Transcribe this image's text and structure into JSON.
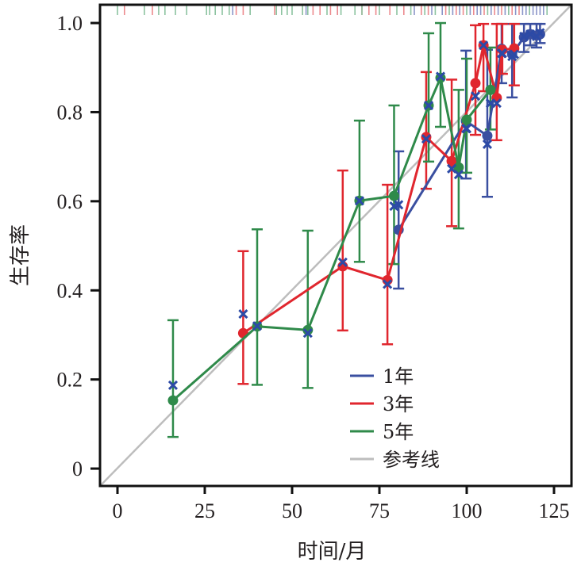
{
  "chart_data": {
    "type": "line",
    "title": "",
    "xlabel": "时间/月",
    "ylabel": "生存率",
    "xlim": [
      -5,
      130
    ],
    "ylim": [
      -0.039,
      1.041
    ],
    "xticks": [
      0,
      25,
      50,
      75,
      100,
      125
    ],
    "xtick_labels": [
      "0",
      "25",
      "50",
      "75",
      "100",
      "125"
    ],
    "yticks": [
      0,
      0.2,
      0.4,
      0.6,
      0.8,
      1.0
    ],
    "ytick_labels": [
      "0",
      "0.2",
      "0.4",
      "0.6",
      "0.8",
      "1.0"
    ],
    "grid": false,
    "legend_position": "bottom-right",
    "colors": {
      "1年": "#3a4fa0",
      "3年": "#e0262e",
      "5年": "#2f8a4a",
      "参考线": "#bdbdbd"
    },
    "reference_line": {
      "name": "参考线",
      "x": [
        -5,
        130
      ],
      "y": [
        -0.039,
        1.041
      ]
    },
    "series": [
      {
        "name": "1年",
        "key": "y1",
        "points": [
          {
            "x": 80.5,
            "y": 0.536,
            "lo": 0.404,
            "hi": 0.712,
            "obs": 0.592
          },
          {
            "x": 99.8,
            "y": 0.78,
            "lo": 0.651,
            "hi": 0.938,
            "obs": 0.763
          },
          {
            "x": 105.9,
            "y": 0.747,
            "lo": 0.61,
            "hi": 0.94,
            "obs": 0.728
          },
          {
            "x": 110.0,
            "y": 0.942,
            "lo": 0.865,
            "hi": 0.998,
            "obs": 0.932
          },
          {
            "x": 113.0,
            "y": 0.93,
            "lo": 0.833,
            "hi": 0.998,
            "obs": 0.925
          },
          {
            "x": 116.4,
            "y": 0.968,
            "lo": 0.935,
            "hi": 0.998,
            "obs": 0.97
          },
          {
            "x": 118.2,
            "y": 0.975,
            "lo": 0.95,
            "hi": 0.998,
            "obs": 0.975
          },
          {
            "x": 120.0,
            "y": 0.972,
            "lo": 0.945,
            "hi": 0.998,
            "obs": 0.97
          },
          {
            "x": 121.0,
            "y": 0.975,
            "lo": 0.955,
            "hi": 0.998,
            "obs": 0.978
          }
        ]
      },
      {
        "name": "3年",
        "key": "y3",
        "points": [
          {
            "x": 36.0,
            "y": 0.304,
            "lo": 0.19,
            "hi": 0.488,
            "obs": 0.347
          },
          {
            "x": 64.5,
            "y": 0.454,
            "lo": 0.31,
            "hi": 0.669,
            "obs": 0.463
          },
          {
            "x": 77.3,
            "y": 0.423,
            "lo": 0.279,
            "hi": 0.637,
            "obs": 0.414
          },
          {
            "x": 88.4,
            "y": 0.744,
            "lo": 0.628,
            "hi": 0.89,
            "obs": 0.74
          },
          {
            "x": 95.7,
            "y": 0.69,
            "lo": 0.544,
            "hi": 0.873,
            "obs": 0.673
          },
          {
            "x": 102.5,
            "y": 0.865,
            "lo": 0.749,
            "hi": 0.995,
            "obs": 0.836
          },
          {
            "x": 104.8,
            "y": 0.95,
            "lo": 0.847,
            "hi": 0.998,
            "obs": 0.95
          },
          {
            "x": 108.6,
            "y": 0.832,
            "lo": 0.737,
            "hi": 0.998,
            "obs": 0.82
          },
          {
            "x": 110.2,
            "y": 0.94,
            "lo": 0.886,
            "hi": 0.998,
            "obs": 0.932
          },
          {
            "x": 113.6,
            "y": 0.943,
            "lo": 0.86,
            "hi": 0.998,
            "obs": 0.93
          }
        ]
      },
      {
        "name": "5年",
        "key": "y5",
        "points": [
          {
            "x": 15.9,
            "y": 0.153,
            "lo": 0.071,
            "hi": 0.333,
            "obs": 0.187
          },
          {
            "x": 40.0,
            "y": 0.319,
            "lo": 0.188,
            "hi": 0.537,
            "obs": 0.32
          },
          {
            "x": 54.5,
            "y": 0.311,
            "lo": 0.181,
            "hi": 0.534,
            "obs": 0.304
          },
          {
            "x": 69.3,
            "y": 0.601,
            "lo": 0.464,
            "hi": 0.781,
            "obs": 0.601
          },
          {
            "x": 79.2,
            "y": 0.612,
            "lo": 0.459,
            "hi": 0.815,
            "obs": 0.589
          },
          {
            "x": 89.1,
            "y": 0.815,
            "lo": 0.689,
            "hi": 0.977,
            "obs": 0.815
          },
          {
            "x": 92.5,
            "y": 0.877,
            "lo": 0.767,
            "hi": 1.0,
            "obs": 0.88
          },
          {
            "x": 97.7,
            "y": 0.676,
            "lo": 0.539,
            "hi": 0.85,
            "obs": 0.66
          },
          {
            "x": 100.0,
            "y": 0.783,
            "lo": 0.664,
            "hi": 0.92,
            "obs": 0.763
          },
          {
            "x": 106.8,
            "y": 0.85,
            "lo": 0.761,
            "hi": 0.945,
            "obs": 0.82
          }
        ]
      }
    ],
    "rug": {
      "y1": [
        33,
        54,
        63,
        85,
        90,
        93,
        96,
        98,
        101,
        103,
        104,
        107,
        109,
        111,
        112,
        114,
        116,
        117,
        118,
        119,
        120,
        121,
        122
      ],
      "y3": [
        2,
        10,
        34,
        36,
        38,
        45,
        53,
        56,
        58,
        61,
        63,
        70,
        72,
        74,
        78,
        82,
        87,
        89,
        94,
        97,
        99,
        102,
        105,
        108,
        110,
        113,
        115
      ],
      "y5": [
        0,
        7.7,
        11.8,
        13.6,
        16.6,
        19.8,
        25.5,
        26.4,
        28,
        30,
        32,
        38,
        45.5,
        47,
        48.6,
        50,
        53,
        54.5,
        60,
        64,
        68,
        70,
        75,
        80,
        84,
        88,
        91,
        95,
        100,
        106,
        112,
        118,
        123
      ]
    }
  },
  "legend": [
    {
      "label": "1年",
      "color": "#3a4fa0"
    },
    {
      "label": "3年",
      "color": "#e0262e"
    },
    {
      "label": "5年",
      "color": "#2f8a4a"
    },
    {
      "label": "参考线",
      "color": "#bdbdbd"
    }
  ]
}
